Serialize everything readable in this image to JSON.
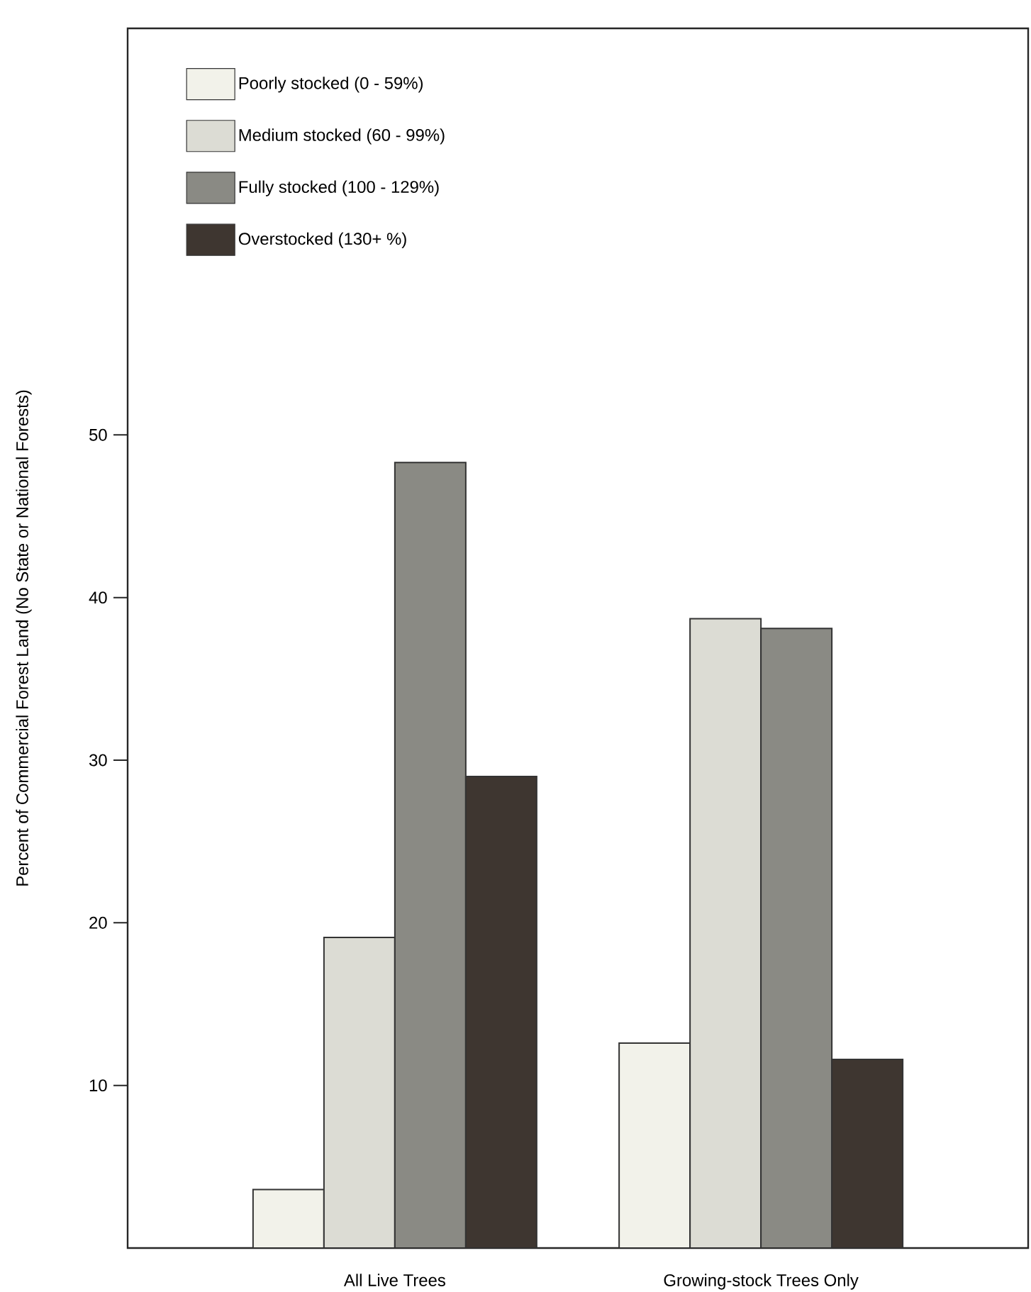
{
  "chart_data": {
    "type": "bar",
    "ylabel": "Percent of Commercial Forest Land  (No State or National Forests)",
    "categories": [
      "All Live Trees",
      "Growing-stock Trees Only"
    ],
    "series": [
      {
        "name": "Poorly stocked (0 - 59%)",
        "color": "#f2f2ea",
        "values": [
          3.6,
          12.6
        ]
      },
      {
        "name": "Medium stocked (60 - 99%)",
        "color": "#dcdcd4",
        "values": [
          19.1,
          38.7
        ]
      },
      {
        "name": "Fully stocked (100 - 129%)",
        "color": "#8a8a84",
        "values": [
          48.3,
          38.1
        ]
      },
      {
        "name": "Overstocked (130+ %)",
        "color": "#3e3630",
        "values": [
          29.0,
          11.6
        ]
      }
    ],
    "ylim": [
      0,
      75
    ],
    "yticks": [
      10,
      20,
      30,
      40,
      50
    ],
    "grid": false,
    "legend": "top left"
  }
}
